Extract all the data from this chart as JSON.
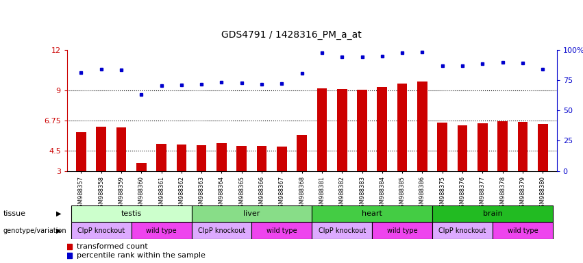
{
  "title": "GDS4791 / 1428316_PM_a_at",
  "samples": [
    "GSM988357",
    "GSM988358",
    "GSM988359",
    "GSM988360",
    "GSM988361",
    "GSM988362",
    "GSM988363",
    "GSM988364",
    "GSM988365",
    "GSM988366",
    "GSM988367",
    "GSM988368",
    "GSM988381",
    "GSM988382",
    "GSM988383",
    "GSM988384",
    "GSM988385",
    "GSM988386",
    "GSM988375",
    "GSM988376",
    "GSM988377",
    "GSM988378",
    "GSM988379",
    "GSM988380"
  ],
  "bar_values": [
    5.9,
    6.3,
    6.25,
    3.6,
    5.0,
    4.95,
    4.9,
    5.05,
    4.85,
    4.85,
    4.8,
    5.7,
    9.15,
    9.1,
    9.05,
    9.25,
    9.5,
    9.65,
    6.6,
    6.4,
    6.55,
    6.7,
    6.65,
    6.5
  ],
  "dot_values": [
    10.3,
    10.55,
    10.5,
    8.7,
    9.35,
    9.4,
    9.45,
    9.6,
    9.55,
    9.45,
    9.5,
    10.25,
    11.8,
    11.5,
    11.5,
    11.55,
    11.8,
    11.85,
    10.85,
    10.85,
    11.0,
    11.1,
    11.05,
    10.55
  ],
  "ylim": [
    3,
    12
  ],
  "yticks": [
    3,
    4.5,
    6.75,
    9,
    12
  ],
  "ytick_labels": [
    "3",
    "4.5",
    "6.75",
    "9",
    "12"
  ],
  "y2ticks_pct": [
    0,
    25,
    50,
    75,
    100
  ],
  "y2tick_labels": [
    "0",
    "25",
    "50",
    "75",
    "100%"
  ],
  "hlines": [
    4.5,
    6.75,
    9
  ],
  "bar_color": "#cc0000",
  "dot_color": "#0000cc",
  "tissue_labels": [
    {
      "label": "testis",
      "start": 0,
      "end": 6,
      "color": "#ccffcc"
    },
    {
      "label": "liver",
      "start": 6,
      "end": 12,
      "color": "#88dd88"
    },
    {
      "label": "heart",
      "start": 12,
      "end": 18,
      "color": "#44cc44"
    },
    {
      "label": "brain",
      "start": 18,
      "end": 24,
      "color": "#22bb22"
    }
  ],
  "genotype_labels": [
    {
      "label": "ClpP knockout",
      "start": 0,
      "end": 3,
      "color": "#ddaaff"
    },
    {
      "label": "wild type",
      "start": 3,
      "end": 6,
      "color": "#ee44ee"
    },
    {
      "label": "ClpP knockout",
      "start": 6,
      "end": 9,
      "color": "#ddaaff"
    },
    {
      "label": "wild type",
      "start": 9,
      "end": 12,
      "color": "#ee44ee"
    },
    {
      "label": "ClpP knockout",
      "start": 12,
      "end": 15,
      "color": "#ddaaff"
    },
    {
      "label": "wild type",
      "start": 15,
      "end": 18,
      "color": "#ee44ee"
    },
    {
      "label": "ClpP knockout",
      "start": 18,
      "end": 21,
      "color": "#ddaaff"
    },
    {
      "label": "wild type",
      "start": 21,
      "end": 24,
      "color": "#ee44ee"
    }
  ],
  "legend_bar_label": "transformed count",
  "legend_dot_label": "percentile rank within the sample",
  "tissue_row_label": "tissue",
  "genotype_row_label": "genotype/variation",
  "plot_bg": "#ffffff",
  "fig_bg": "#ffffff"
}
